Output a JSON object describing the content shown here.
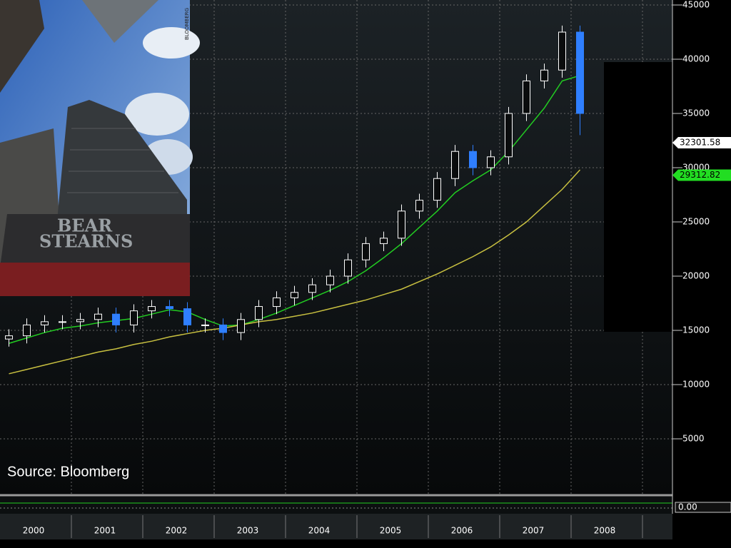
{
  "chart_data": {
    "type": "candlestick",
    "source": "Source: Bloomberg",
    "categories": [
      "2000",
      null,
      null,
      null,
      "2001",
      null,
      null,
      null,
      "2002",
      null,
      null,
      null,
      "2003",
      null,
      null,
      null,
      "2004",
      null,
      null,
      null,
      "2005",
      null,
      null,
      null,
      "2006",
      null,
      null,
      null,
      "2007",
      null,
      null,
      null,
      "2008"
    ],
    "open": [
      14200,
      14500,
      15500,
      15800,
      15800,
      16000,
      16500,
      15500,
      16800,
      17200,
      17000,
      15500,
      15500,
      14800,
      16000,
      17200,
      18000,
      18500,
      19200,
      20000,
      21500,
      23000,
      23500,
      26000,
      27000,
      29000,
      31500,
      30000,
      31000,
      35000,
      38000,
      39000,
      42500
    ],
    "high": [
      15100,
      16100,
      16400,
      16400,
      16600,
      17100,
      17100,
      17400,
      17800,
      17800,
      17600,
      16100,
      16100,
      16600,
      17800,
      18600,
      19100,
      19800,
      20600,
      22100,
      23600,
      24100,
      26600,
      27600,
      29600,
      32100,
      32100,
      31600,
      35600,
      38600,
      39600,
      43100,
      43100
    ],
    "low": [
      13500,
      13800,
      14800,
      15100,
      15100,
      15300,
      14800,
      14800,
      16100,
      16300,
      14800,
      14800,
      14100,
      14100,
      15300,
      16500,
      17300,
      17800,
      18500,
      19300,
      20800,
      22300,
      22800,
      25300,
      26300,
      28300,
      29300,
      29300,
      30300,
      34300,
      37300,
      38300,
      33000
    ],
    "close": [
      14500,
      15500,
      15800,
      15800,
      16000,
      16500,
      15500,
      16800,
      17200,
      17000,
      15500,
      15500,
      14800,
      16000,
      17200,
      18000,
      18500,
      19200,
      20000,
      21500,
      23000,
      23500,
      26000,
      27000,
      29000,
      31500,
      30000,
      31000,
      35000,
      38000,
      39000,
      42500,
      35000
    ],
    "up_color": "#ffffff",
    "down_color": "#2f7fff",
    "series": [
      {
        "color": "#22cc22",
        "values": [
          13800,
          14300,
          14800,
          15200,
          15400,
          15700,
          15900,
          16100,
          16500,
          16900,
          16700,
          16000,
          15400,
          15500,
          16000,
          16600,
          17300,
          18000,
          18700,
          19500,
          20500,
          21700,
          23000,
          24500,
          26000,
          27700,
          28800,
          29800,
          31500,
          33500,
          35500,
          38000,
          38500
        ]
      },
      {
        "color": "#c8c040",
        "values": [
          11000,
          11400,
          11800,
          12200,
          12600,
          13000,
          13300,
          13700,
          14000,
          14400,
          14700,
          15000,
          15200,
          15500,
          15800,
          16000,
          16300,
          16600,
          17000,
          17400,
          17800,
          18300,
          18800,
          19500,
          20200,
          21000,
          21800,
          22700,
          23800,
          25000,
          26500,
          28000,
          29800
        ]
      }
    ],
    "markers": [
      {
        "value": 32301.58,
        "color": "#ffffff"
      },
      {
        "value": 29312.82,
        "color": "#22dd22"
      }
    ],
    "ylim": [
      0,
      45000
    ],
    "yticks": [
      5000,
      10000,
      15000,
      20000,
      25000,
      30000,
      35000,
      40000,
      45000
    ],
    "grid": true,
    "lower_yticks": [
      {
        "value": 0,
        "label": "0.00"
      }
    ]
  },
  "photo": {
    "sign_line1": "BEAR",
    "sign_line2": "STEARNS",
    "credit": "BLOOMBERG"
  }
}
